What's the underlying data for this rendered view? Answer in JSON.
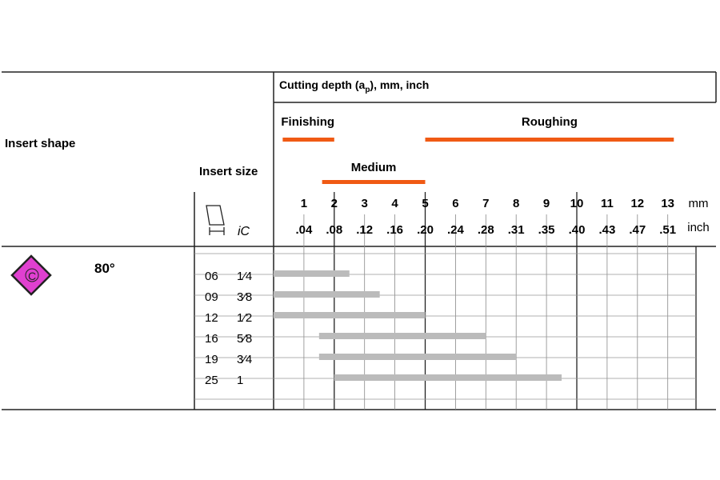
{
  "header": {
    "cutting_depth_label": "Cutting depth (a",
    "cutting_depth_sub": "p",
    "cutting_depth_rest": "), mm, inch",
    "insert_shape_label": "Insert shape",
    "insert_size_label": "Insert size",
    "ic_label": "iC"
  },
  "shape": {
    "letter": "C",
    "angle": "80°",
    "color": "#e040d0"
  },
  "chart_data": {
    "type": "bar",
    "orientation": "horizontal",
    "x_ticks_mm": [
      "1",
      "2",
      "3",
      "4",
      "5",
      "6",
      "7",
      "8",
      "9",
      "10",
      "11",
      "12",
      "13"
    ],
    "x_ticks_inch": [
      ".04",
      ".08",
      ".12",
      ".16",
      ".20",
      ".24",
      ".28",
      ".31",
      ".35",
      ".40",
      ".43",
      ".47",
      ".51"
    ],
    "x_unit_mm": "mm",
    "x_unit_inch": "inch",
    "xlim": [
      0,
      14
    ],
    "ranges": [
      {
        "name": "Finishing",
        "start": 0.3,
        "end": 2.0,
        "color": "#f05a14"
      },
      {
        "name": "Roughing",
        "start": 5.0,
        "end": 13.2,
        "color": "#f05a14"
      },
      {
        "name": "Medium",
        "start": 1.6,
        "end": 5.0,
        "color": "#f05a14"
      }
    ],
    "categories_mm": [
      "06",
      "09",
      "12",
      "16",
      "19",
      "25"
    ],
    "categories_inch": [
      "1⁄4",
      "3⁄8",
      "1⁄2",
      "5⁄8",
      "3⁄4",
      "1"
    ],
    "series": [
      {
        "values": [
          {
            "start": 0,
            "end": 2.5
          },
          {
            "start": 0,
            "end": 3.5
          },
          {
            "start": 0,
            "end": 5.0
          },
          {
            "start": 1.5,
            "end": 7.0
          },
          {
            "start": 1.5,
            "end": 8.0
          },
          {
            "start": 2.0,
            "end": 9.5
          }
        ],
        "color": "#bbbbbb"
      }
    ]
  }
}
